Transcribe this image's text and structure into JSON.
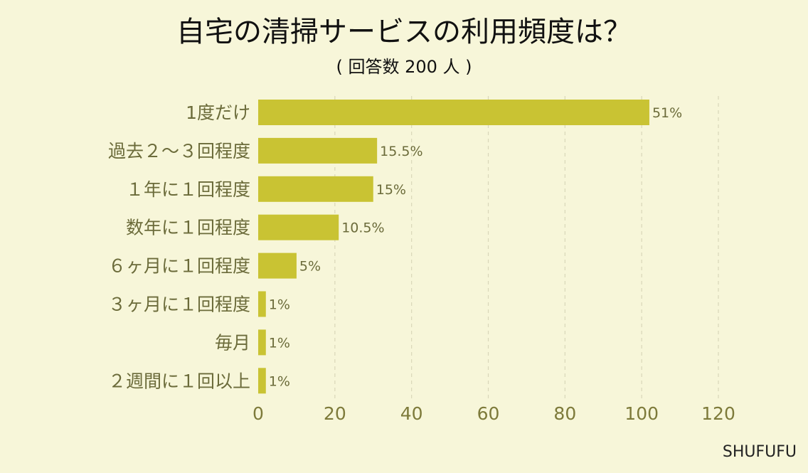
{
  "chart_data": {
    "type": "bar",
    "orientation": "horizontal",
    "title": "自宅の清掃サービスの利用頻度は？",
    "subtitle": "( 回答数 200 人 )",
    "categories": [
      "1度だけ",
      "過去２～３回程度",
      "１年に１回程度",
      "数年に１回程度",
      "６ヶ月に１回程度",
      "３ヶ月に１回程度",
      "毎月",
      "２週間に１回以上"
    ],
    "values": [
      102,
      31,
      30,
      21,
      10,
      2,
      2,
      2
    ],
    "data_labels": [
      "51%",
      "15.5%",
      "15%",
      "10.5%",
      "5%",
      "1%",
      "1%",
      "1%"
    ],
    "x_ticks": [
      "0",
      "20",
      "40",
      "60",
      "80",
      "100",
      "120"
    ],
    "xlim": [
      0,
      120
    ],
    "grid": true,
    "bar_color": "#c9c333"
  },
  "brand": "SHUFUFU"
}
